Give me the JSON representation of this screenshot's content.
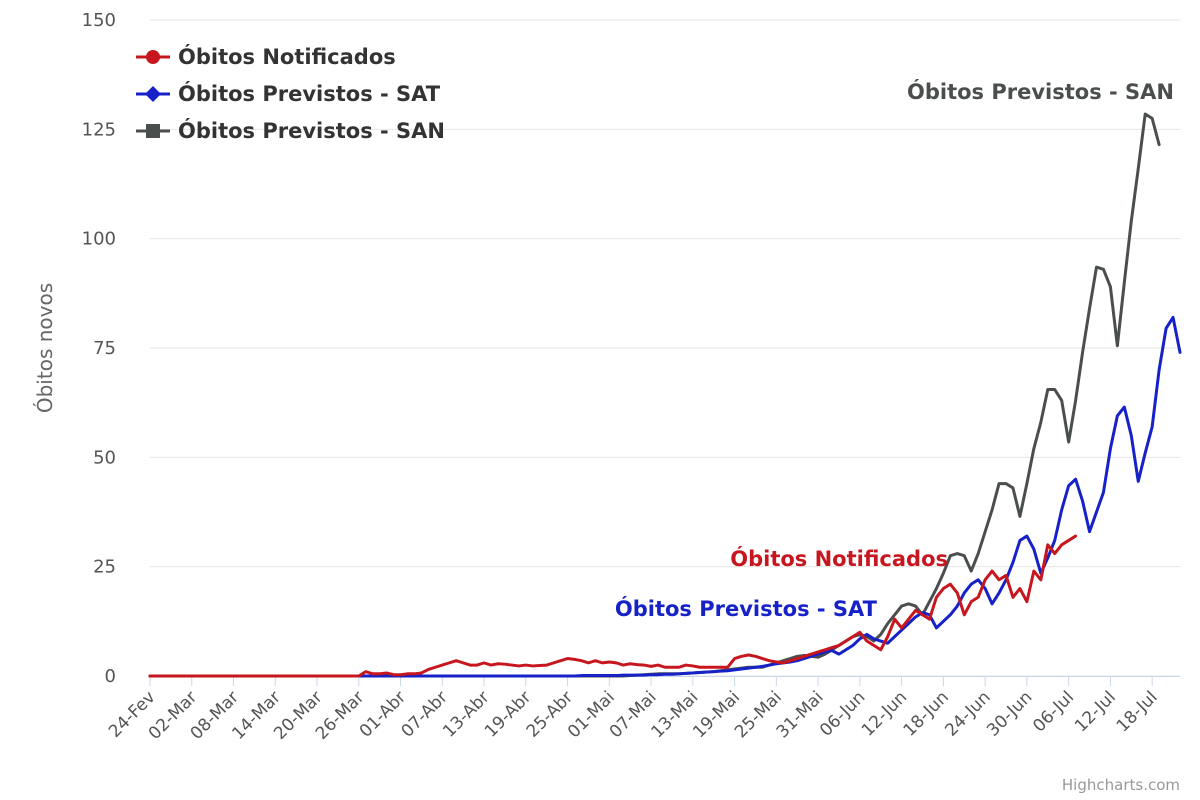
{
  "credits": "Highcharts.com",
  "chart_data": {
    "type": "line",
    "ylabel": "Óbitos novos",
    "ylim": [
      0,
      150
    ],
    "yticks": [
      0,
      25,
      50,
      75,
      100,
      125,
      150
    ],
    "x_start": "2020-02-24",
    "n_days": 149,
    "x_tick_labels": [
      "24-Fev",
      "02-Mar",
      "08-Mar",
      "14-Mar",
      "20-Mar",
      "26-Mar",
      "01-Abr",
      "07-Abr",
      "13-Abr",
      "19-Abr",
      "25-Abr",
      "01-Mai",
      "07-Mai",
      "13-Mai",
      "19-Mai",
      "25-Mai",
      "31-Mai",
      "06-Jun",
      "12-Jun",
      "18-Jun",
      "24-Jun",
      "30-Jun",
      "06-Jul",
      "12-Jul",
      "18-Jul"
    ],
    "grid": true,
    "legend_position": "top-left",
    "series": [
      {
        "name": "Óbitos Notificados",
        "color": "#c8161e",
        "marker": "circle",
        "annotation": "Óbitos Notificados",
        "values": [
          0,
          0,
          0,
          0,
          0,
          0,
          0,
          0,
          0,
          0,
          0,
          0,
          0,
          0,
          0,
          0,
          0,
          0,
          0,
          0,
          0,
          0,
          0,
          0,
          0,
          0,
          0,
          0,
          0,
          0,
          0,
          1,
          0.5,
          0.5,
          0.7,
          0.3,
          0.3,
          0.5,
          0.5,
          0.7,
          1.5,
          2,
          2.5,
          3,
          3.5,
          3,
          2.5,
          2.5,
          3,
          2.5,
          2.8,
          2.7,
          2.5,
          2.3,
          2.5,
          2.3,
          2.4,
          2.5,
          3,
          3.5,
          4,
          3.8,
          3.5,
          3,
          3.5,
          3,
          3.2,
          3,
          2.5,
          2.8,
          2.6,
          2.5,
          2.2,
          2.5,
          2,
          2,
          2,
          2.5,
          2.3,
          2,
          2,
          2,
          2,
          2,
          4,
          4.5,
          4.8,
          4.5,
          4,
          3.5,
          3.2,
          3,
          3.5,
          4,
          4.5,
          5,
          5.5,
          6,
          6.5,
          7,
          8,
          9,
          10,
          8,
          7,
          6,
          9,
          13,
          11,
          13,
          15,
          14,
          13,
          18,
          20,
          21,
          19,
          14,
          17,
          18,
          22,
          24,
          22,
          23,
          18,
          20,
          17,
          24,
          22,
          30,
          28,
          30,
          31,
          32
        ]
      },
      {
        "name": "Óbitos Previstos - SAT",
        "color": "#1621c8",
        "marker": "diamond",
        "annotation": "Óbitos Previstos - SAT",
        "values": [
          0,
          0,
          0,
          0,
          0,
          0,
          0,
          0,
          0,
          0,
          0,
          0,
          0,
          0,
          0,
          0,
          0,
          0,
          0,
          0,
          0,
          0,
          0,
          0,
          0,
          0,
          0,
          0,
          0,
          0,
          0,
          0,
          0,
          0,
          0,
          0,
          0,
          0,
          0,
          0,
          0,
          0,
          0,
          0,
          0,
          0,
          0,
          0,
          0,
          0,
          0,
          0,
          0,
          0,
          0,
          0,
          0,
          0,
          0,
          0,
          0,
          0,
          0.1,
          0.1,
          0.1,
          0.1,
          0.1,
          0.1,
          0.2,
          0.2,
          0.2,
          0.2,
          0.3,
          0.3,
          0.4,
          0.4,
          0.5,
          0.6,
          0.7,
          0.8,
          0.9,
          1,
          1.1,
          1.2,
          1.4,
          1.6,
          1.8,
          2,
          2.2,
          2.5,
          2.8,
          3,
          3.2,
          3.5,
          4,
          4.5,
          5,
          5.5,
          5.8,
          5,
          6,
          7,
          8.5,
          9.5,
          8.5,
          8,
          7.5,
          9,
          10.5,
          12,
          13.5,
          14.5,
          14,
          11,
          12.5,
          14,
          16,
          19,
          21,
          22,
          20,
          16.5,
          19,
          22,
          26,
          31,
          32,
          29,
          23.5,
          27,
          31,
          38,
          43.5,
          45,
          40,
          33,
          37.5,
          42,
          52,
          59.5,
          61.5,
          55,
          44.5,
          51,
          57,
          70,
          79.5,
          82,
          74
        ]
      },
      {
        "name": "Óbitos Previstos - SAN",
        "color": "#4a4f4e",
        "marker": "square",
        "annotation": "Óbitos Previstos - SAN",
        "values": [
          0,
          0,
          0,
          0,
          0,
          0,
          0,
          0,
          0,
          0,
          0,
          0,
          0,
          0,
          0,
          0,
          0,
          0,
          0,
          0,
          0,
          0,
          0,
          0,
          0,
          0,
          0,
          0,
          0,
          0,
          0,
          0,
          0,
          0,
          0,
          0,
          0,
          0,
          0,
          0,
          0,
          0,
          0,
          0,
          0,
          0,
          0,
          0,
          0,
          0,
          0,
          0,
          0,
          0,
          0,
          0,
          0,
          0,
          0,
          0,
          0,
          0,
          0,
          0,
          0,
          0,
          0,
          0,
          0,
          0.1,
          0.2,
          0.3,
          0.4,
          0.5,
          0.5,
          0.5,
          0.5,
          0.6,
          0.7,
          0.8,
          0.9,
          1,
          1.2,
          1.4,
          1.6,
          1.8,
          2,
          2,
          2,
          2.5,
          3,
          3.5,
          4,
          4.5,
          4.7,
          4.5,
          4.3,
          5,
          6,
          7,
          8,
          9,
          9.5,
          9,
          8,
          9.5,
          12,
          14,
          16,
          16.5,
          16,
          14,
          17,
          20,
          23.5,
          27.5,
          28,
          27.5,
          24,
          28,
          33,
          38,
          44,
          44,
          43,
          36.5,
          44,
          52,
          58,
          65.5,
          65.5,
          63,
          53.5,
          63,
          74,
          84,
          93.5,
          93,
          89,
          75.5,
          90,
          104,
          116,
          128.5,
          127.5,
          121.5
        ]
      }
    ]
  }
}
